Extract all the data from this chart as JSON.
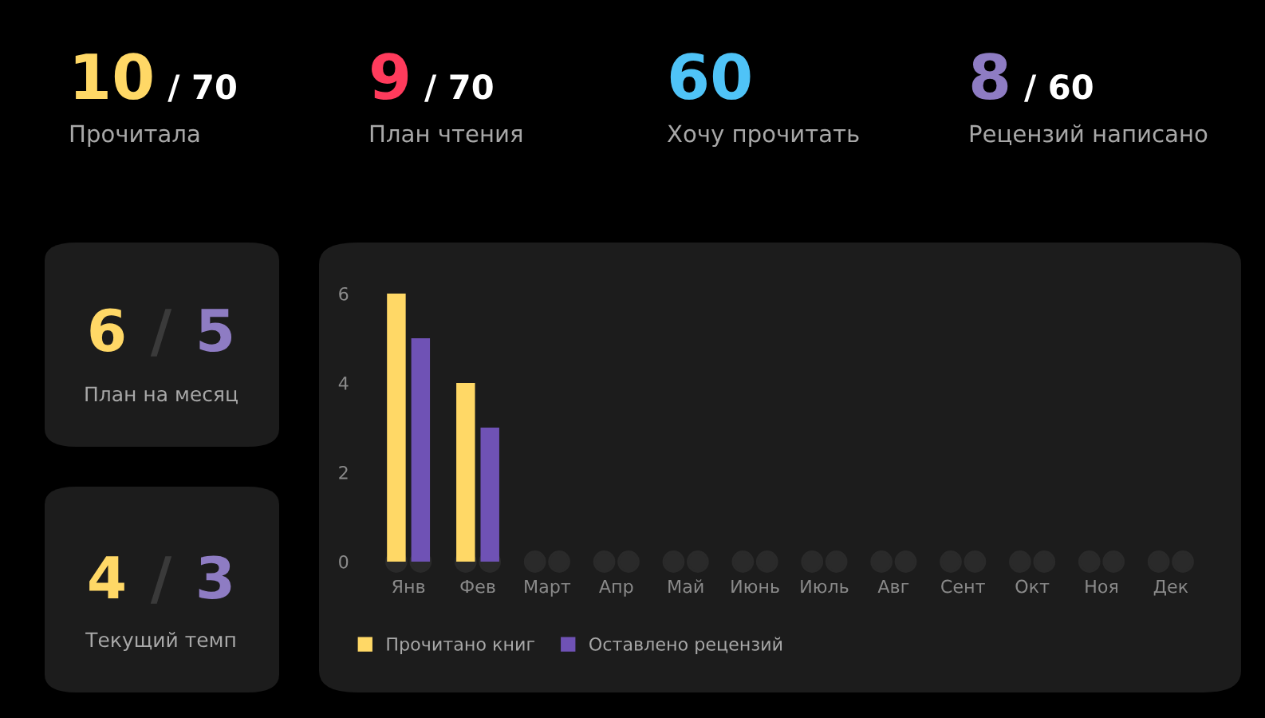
{
  "chart_data": [
    {
      "type": "other",
      "title": "Прочитала",
      "annotations": [
        "10",
        "/ 70"
      ],
      "colors": [
        "#ffd866",
        "#ffffff"
      ]
    },
    {
      "type": "other",
      "title": "План чтения",
      "annotations": [
        "9",
        "/ 70"
      ],
      "colors": [
        "#ff3b5c",
        "#ffffff"
      ]
    },
    {
      "type": "other",
      "title": "Хочу прочитать",
      "annotations": [
        "60"
      ],
      "colors": [
        "#4fc3f7"
      ]
    },
    {
      "type": "other",
      "title": "Рецензий написано",
      "annotations": [
        "8",
        "/ 60"
      ],
      "colors": [
        "#8e7cc3",
        "#ffffff"
      ]
    },
    {
      "type": "other",
      "title": "План на месяц",
      "annotations": [
        "6",
        "/",
        "5"
      ],
      "colors": [
        "#ffd866",
        "#3a3a3a",
        "#8e7cc3"
      ]
    },
    {
      "type": "other",
      "title": "Текущий темп",
      "annotations": [
        "4",
        "/",
        "3"
      ],
      "colors": [
        "#ffd866",
        "#3a3a3a",
        "#8e7cc3"
      ]
    },
    {
      "type": "bar",
      "categories": [
        "Янв",
        "Фев",
        "Март",
        "Апр",
        "Май",
        "Июнь",
        "Июль",
        "Авг",
        "Сент",
        "Окт",
        "Ноя",
        "Дек"
      ],
      "series": [
        {
          "name": "Прочитано книг",
          "color": "#ffd866",
          "values": [
            6,
            4,
            0,
            0,
            0,
            0,
            0,
            0,
            0,
            0,
            0,
            0
          ]
        },
        {
          "name": "Оставлено рецензий",
          "color": "#6f52b5",
          "values": [
            5,
            3,
            0,
            0,
            0,
            0,
            0,
            0,
            0,
            0,
            0,
            0
          ]
        }
      ],
      "ylim": [
        0,
        6
      ],
      "yticks": [
        0,
        2,
        4,
        6
      ],
      "grid": false,
      "legend": "bottom left"
    }
  ]
}
